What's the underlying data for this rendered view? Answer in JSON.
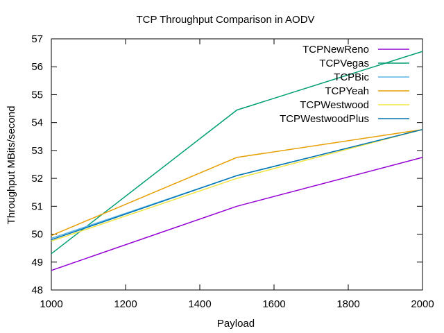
{
  "chart_data": {
    "type": "line",
    "title": "TCP Throughput Comparison in AODV",
    "xlabel": "Payload",
    "ylabel": "Throughput MBits/second",
    "xlim": [
      1000,
      2000
    ],
    "ylim": [
      48,
      57
    ],
    "xticks": [
      1000,
      1200,
      1400,
      1600,
      1800,
      2000
    ],
    "yticks": [
      48,
      49,
      50,
      51,
      52,
      53,
      54,
      55,
      56,
      57
    ],
    "grid": false,
    "legend_position": "top-right",
    "x": [
      1000,
      1500,
      2000
    ],
    "series": [
      {
        "name": "TCPNewReno",
        "color": "#9400d3",
        "values": [
          48.7,
          51.0,
          52.75
        ]
      },
      {
        "name": "TCPVegas",
        "color": "#009e73",
        "values": [
          49.3,
          54.45,
          56.55
        ]
      },
      {
        "name": "TCPBic",
        "color": "#56b4e9",
        "values": [
          49.85,
          52.1,
          53.75
        ]
      },
      {
        "name": "TCPYeah",
        "color": "#e69f00",
        "values": [
          49.95,
          52.75,
          53.75
        ]
      },
      {
        "name": "TCPWestwood",
        "color": "#f0e442",
        "values": [
          49.75,
          52.0,
          53.75
        ]
      },
      {
        "name": "TCPWestwoodPlus",
        "color": "#0072b2",
        "values": [
          49.8,
          52.1,
          53.75
        ]
      }
    ]
  }
}
